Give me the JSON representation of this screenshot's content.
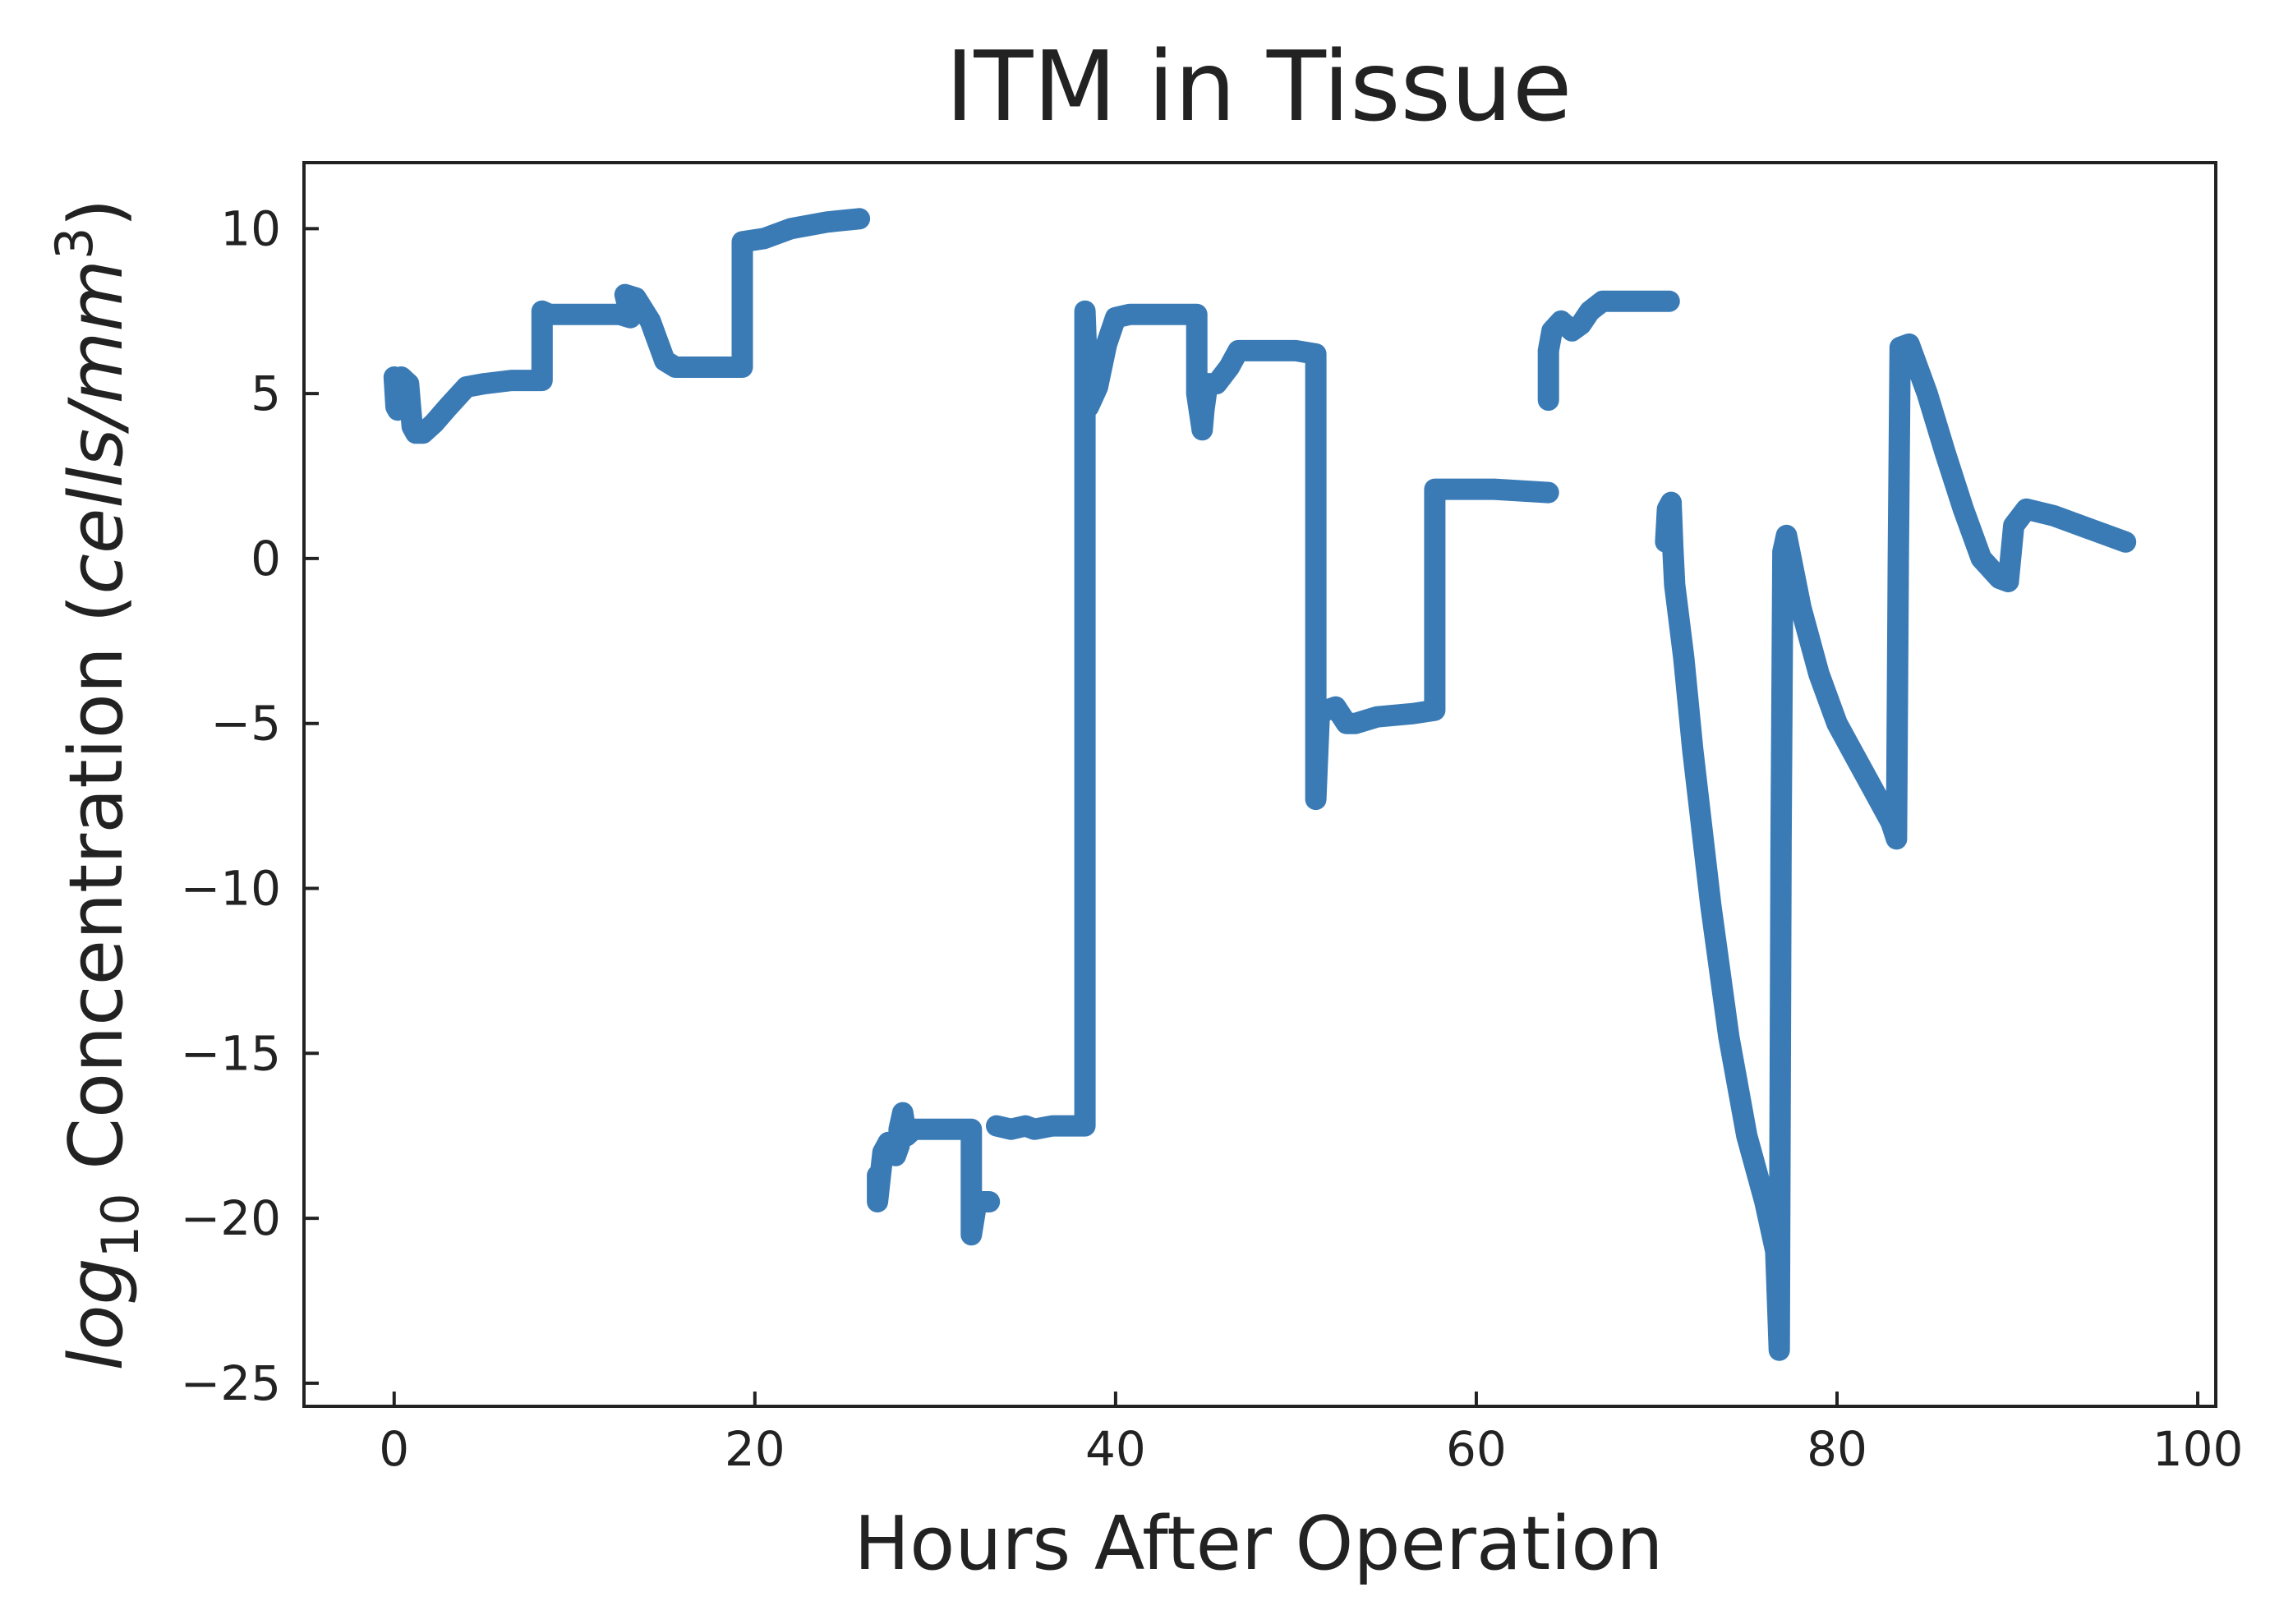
{
  "chart_data": {
    "type": "line",
    "title": "ITM in Tissue",
    "xlabel": "Hours After Operation",
    "ylabel": {
      "prefix": "log",
      "sub": "10",
      "middle": " Concentration (",
      "unit": "cells/mm",
      "sup": "3",
      "suffix": ")"
    },
    "xlim": [
      -5,
      101
    ],
    "ylim": [
      -25.7,
      12
    ],
    "xticks": [
      0,
      20,
      40,
      60,
      80,
      100
    ],
    "xtick_labels": [
      "0",
      "20",
      "40",
      "60",
      "80",
      "100"
    ],
    "yticks": [
      10,
      5,
      0,
      -5,
      -10,
      -15,
      -20,
      -25
    ],
    "ytick_labels": [
      "10",
      "5",
      "0",
      "−5",
      "−10",
      "−15",
      "−20",
      "−25"
    ],
    "grid": false,
    "color": "#3a7bb6",
    "segments": [
      [
        [
          0,
          5.5
        ],
        [
          0.1,
          4.6
        ],
        [
          0.2,
          4.5
        ],
        [
          0.4,
          5.5
        ],
        [
          0.6,
          5.4
        ],
        [
          0.8,
          5.3
        ],
        [
          1.0,
          4.0
        ],
        [
          1.2,
          3.8
        ],
        [
          1.6,
          3.8
        ],
        [
          2.2,
          4.1
        ],
        [
          3.0,
          4.6
        ],
        [
          4.0,
          5.2
        ],
        [
          5.0,
          5.3
        ],
        [
          6.5,
          5.4
        ],
        [
          8.2,
          5.4
        ],
        [
          8.2,
          7.5
        ],
        [
          8.6,
          7.4
        ],
        [
          10,
          7.4
        ],
        [
          11,
          7.4
        ],
        [
          12.5,
          7.4
        ],
        [
          13.1,
          7.3
        ],
        [
          12.8,
          8.0
        ],
        [
          13.4,
          7.9
        ],
        [
          14.2,
          7.2
        ],
        [
          14.6,
          6.6
        ],
        [
          15.0,
          6.0
        ],
        [
          15.6,
          5.8
        ],
        [
          17,
          5.8
        ],
        [
          19.3,
          5.8
        ],
        [
          19.3,
          9.6
        ],
        [
          20.5,
          9.7
        ],
        [
          22,
          10.0
        ],
        [
          24,
          10.2
        ],
        [
          25.8,
          10.3
        ]
      ],
      [
        [
          26.8,
          -18.7
        ],
        [
          26.8,
          -19.5
        ],
        [
          27.0,
          -18.5
        ],
        [
          27.1,
          -18.0
        ],
        [
          27.4,
          -17.7
        ],
        [
          27.8,
          -18.1
        ],
        [
          28.0,
          -17.8
        ],
        [
          28.0,
          -17.3
        ],
        [
          28.2,
          -16.8
        ],
        [
          28.4,
          -17.5
        ],
        [
          28.8,
          -17.3
        ],
        [
          29.5,
          -17.3
        ],
        [
          30.5,
          -17.3
        ],
        [
          31.5,
          -17.3
        ],
        [
          32.0,
          -17.3
        ],
        [
          32.0,
          -20.5
        ],
        [
          32.3,
          -19.5
        ],
        [
          33.0,
          -19.5
        ]
      ],
      [
        [
          33.4,
          -17.2
        ],
        [
          34.2,
          -17.3
        ],
        [
          35.0,
          -17.2
        ],
        [
          35.5,
          -17.3
        ],
        [
          36.5,
          -17.2
        ],
        [
          38.3,
          -17.2
        ],
        [
          38.3,
          7.5
        ],
        [
          38.5,
          4.6
        ],
        [
          39.0,
          5.2
        ],
        [
          39.5,
          6.5
        ],
        [
          40.0,
          7.3
        ],
        [
          40.8,
          7.4
        ],
        [
          42,
          7.4
        ],
        [
          43.5,
          7.4
        ],
        [
          44.5,
          7.4
        ],
        [
          44.5,
          5.0
        ],
        [
          44.8,
          3.9
        ],
        [
          44.9,
          4.5
        ],
        [
          45.1,
          5.3
        ],
        [
          45.6,
          5.3
        ],
        [
          46.3,
          5.8
        ],
        [
          46.8,
          6.3
        ],
        [
          48,
          6.3
        ],
        [
          50,
          6.3
        ],
        [
          51.1,
          6.2
        ],
        [
          51.1,
          -7.3
        ],
        [
          51.3,
          -4.7
        ],
        [
          51.7,
          -4.6
        ],
        [
          52.2,
          -4.5
        ],
        [
          52.8,
          -5.0
        ],
        [
          53.3,
          -5.0
        ],
        [
          54.5,
          -4.8
        ],
        [
          56.5,
          -4.7
        ],
        [
          57.7,
          -4.6
        ],
        [
          57.7,
          2.1
        ],
        [
          59,
          2.1
        ],
        [
          61,
          2.1
        ],
        [
          64,
          2.0
        ]
      ],
      [
        [
          64.0,
          4.8
        ],
        [
          64.0,
          6.3
        ],
        [
          64.2,
          6.9
        ],
        [
          64.7,
          7.2
        ],
        [
          65.3,
          6.9
        ],
        [
          65.8,
          7.1
        ],
        [
          66.3,
          7.5
        ],
        [
          67.0,
          7.8
        ],
        [
          68,
          7.8
        ],
        [
          70,
          7.8
        ],
        [
          70.7,
          7.8
        ]
      ],
      [
        [
          70.5,
          0.5
        ],
        [
          70.6,
          1.5
        ],
        [
          70.8,
          1.7
        ],
        [
          70.9,
          0.3
        ],
        [
          71.0,
          -0.8
        ],
        [
          71.5,
          -3.0
        ],
        [
          72,
          -5.8
        ],
        [
          73,
          -10.5
        ],
        [
          74,
          -14.5
        ],
        [
          75,
          -17.5
        ],
        [
          76,
          -19.5
        ],
        [
          76.6,
          -21.0
        ],
        [
          76.8,
          -24.0
        ],
        [
          76.9,
          -8.5
        ],
        [
          77.0,
          0.2
        ],
        [
          77.2,
          0.7
        ],
        [
          78,
          -1.5
        ],
        [
          79,
          -3.5
        ],
        [
          80,
          -5.0
        ],
        [
          81,
          -6.0
        ],
        [
          82,
          -7.0
        ],
        [
          83,
          -8.0
        ],
        [
          83.3,
          -8.5
        ],
        [
          83.4,
          0.0
        ],
        [
          83.5,
          6.4
        ],
        [
          84,
          6.5
        ],
        [
          85,
          5.0
        ],
        [
          86,
          3.2
        ],
        [
          87,
          1.5
        ],
        [
          88,
          0.0
        ],
        [
          89,
          -0.6
        ],
        [
          89.5,
          -0.7
        ],
        [
          89.8,
          1.0
        ],
        [
          90.5,
          1.5
        ],
        [
          92,
          1.3
        ],
        [
          94,
          0.9
        ],
        [
          96,
          0.5
        ]
      ]
    ]
  }
}
